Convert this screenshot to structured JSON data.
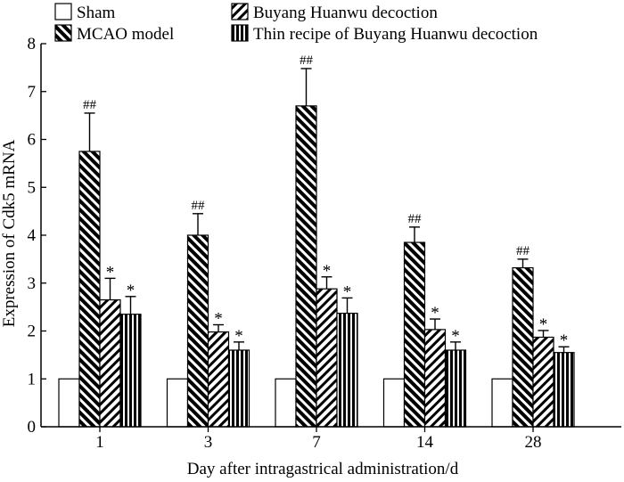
{
  "chart_data": {
    "type": "bar",
    "xlabel": "Day after intragastrical administration/d",
    "ylabel": "Expression of Cdk5 mRNA",
    "ylim": [
      0,
      8
    ],
    "yticks": [
      0,
      1,
      2,
      3,
      4,
      5,
      6,
      7,
      8
    ],
    "categories": [
      "1",
      "3",
      "7",
      "14",
      "28"
    ],
    "legend_placement": "top",
    "grid": false,
    "series": [
      {
        "name": "Sham",
        "pattern": "open",
        "values": [
          1,
          1,
          1,
          1,
          1
        ],
        "errors": [
          0,
          0,
          0,
          0,
          0
        ],
        "marks": [
          "",
          "",
          "",
          "",
          ""
        ]
      },
      {
        "name": "MCAO model",
        "pattern": "back-diagonal",
        "values": [
          5.75,
          4.0,
          6.7,
          3.85,
          3.32
        ],
        "errors": [
          0.8,
          0.45,
          0.78,
          0.32,
          0.18
        ],
        "marks": [
          "##",
          "##",
          "##",
          "##",
          "##"
        ]
      },
      {
        "name": "Buyang Huanwu decoction",
        "pattern": "forward-diagonal",
        "values": [
          2.65,
          1.98,
          2.88,
          2.03,
          1.87
        ],
        "errors": [
          0.45,
          0.15,
          0.25,
          0.22,
          0.14
        ],
        "marks": [
          "*",
          "*",
          "*",
          "*",
          "*"
        ]
      },
      {
        "name": "Thin recipe of Buyang Huanwu decoction",
        "pattern": "vertical",
        "values": [
          2.35,
          1.6,
          2.37,
          1.6,
          1.55
        ],
        "errors": [
          0.37,
          0.17,
          0.32,
          0.17,
          0.12
        ],
        "marks": [
          "*",
          "*",
          "*",
          "*",
          "*"
        ]
      }
    ]
  }
}
